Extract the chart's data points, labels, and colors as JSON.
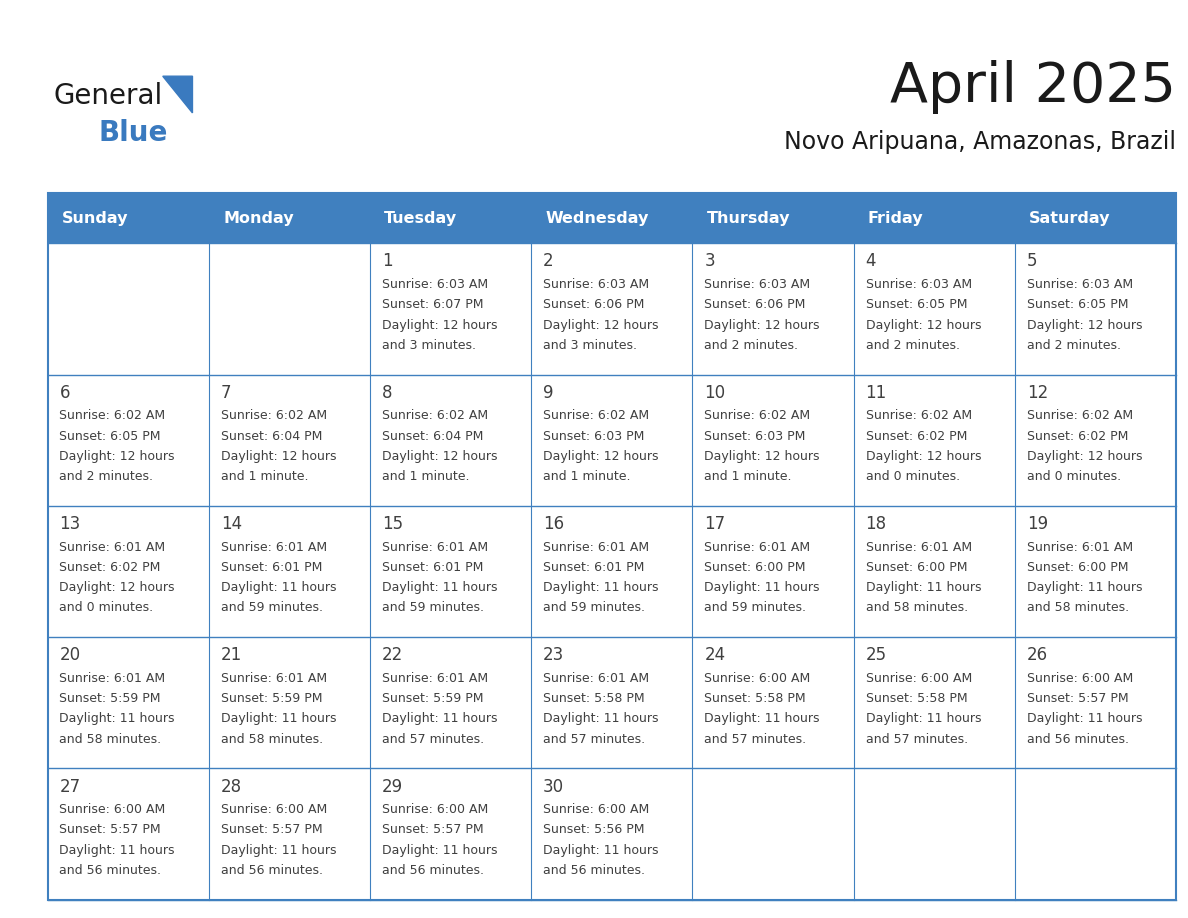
{
  "title": "April 2025",
  "subtitle": "Novo Aripuana, Amazonas, Brazil",
  "days_of_week": [
    "Sunday",
    "Monday",
    "Tuesday",
    "Wednesday",
    "Thursday",
    "Friday",
    "Saturday"
  ],
  "header_bg": "#4080bf",
  "header_text_color": "#ffffff",
  "border_color": "#4080bf",
  "text_color": "#404040",
  "title_color": "#1a1a1a",
  "subtitle_color": "#1a1a1a",
  "general_text_color": "#1a1a1a",
  "blue_text_color": "#3a7abf",
  "calendar_data": [
    [
      {
        "day": "",
        "sunrise": "",
        "sunset": "",
        "daylight": ""
      },
      {
        "day": "",
        "sunrise": "",
        "sunset": "",
        "daylight": ""
      },
      {
        "day": "1",
        "sunrise": "6:03 AM",
        "sunset": "6:07 PM",
        "daylight": "12 hours\nand 3 minutes."
      },
      {
        "day": "2",
        "sunrise": "6:03 AM",
        "sunset": "6:06 PM",
        "daylight": "12 hours\nand 3 minutes."
      },
      {
        "day": "3",
        "sunrise": "6:03 AM",
        "sunset": "6:06 PM",
        "daylight": "12 hours\nand 2 minutes."
      },
      {
        "day": "4",
        "sunrise": "6:03 AM",
        "sunset": "6:05 PM",
        "daylight": "12 hours\nand 2 minutes."
      },
      {
        "day": "5",
        "sunrise": "6:03 AM",
        "sunset": "6:05 PM",
        "daylight": "12 hours\nand 2 minutes."
      }
    ],
    [
      {
        "day": "6",
        "sunrise": "6:02 AM",
        "sunset": "6:05 PM",
        "daylight": "12 hours\nand 2 minutes."
      },
      {
        "day": "7",
        "sunrise": "6:02 AM",
        "sunset": "6:04 PM",
        "daylight": "12 hours\nand 1 minute."
      },
      {
        "day": "8",
        "sunrise": "6:02 AM",
        "sunset": "6:04 PM",
        "daylight": "12 hours\nand 1 minute."
      },
      {
        "day": "9",
        "sunrise": "6:02 AM",
        "sunset": "6:03 PM",
        "daylight": "12 hours\nand 1 minute."
      },
      {
        "day": "10",
        "sunrise": "6:02 AM",
        "sunset": "6:03 PM",
        "daylight": "12 hours\nand 1 minute."
      },
      {
        "day": "11",
        "sunrise": "6:02 AM",
        "sunset": "6:02 PM",
        "daylight": "12 hours\nand 0 minutes."
      },
      {
        "day": "12",
        "sunrise": "6:02 AM",
        "sunset": "6:02 PM",
        "daylight": "12 hours\nand 0 minutes."
      }
    ],
    [
      {
        "day": "13",
        "sunrise": "6:01 AM",
        "sunset": "6:02 PM",
        "daylight": "12 hours\nand 0 minutes."
      },
      {
        "day": "14",
        "sunrise": "6:01 AM",
        "sunset": "6:01 PM",
        "daylight": "11 hours\nand 59 minutes."
      },
      {
        "day": "15",
        "sunrise": "6:01 AM",
        "sunset": "6:01 PM",
        "daylight": "11 hours\nand 59 minutes."
      },
      {
        "day": "16",
        "sunrise": "6:01 AM",
        "sunset": "6:01 PM",
        "daylight": "11 hours\nand 59 minutes."
      },
      {
        "day": "17",
        "sunrise": "6:01 AM",
        "sunset": "6:00 PM",
        "daylight": "11 hours\nand 59 minutes."
      },
      {
        "day": "18",
        "sunrise": "6:01 AM",
        "sunset": "6:00 PM",
        "daylight": "11 hours\nand 58 minutes."
      },
      {
        "day": "19",
        "sunrise": "6:01 AM",
        "sunset": "6:00 PM",
        "daylight": "11 hours\nand 58 minutes."
      }
    ],
    [
      {
        "day": "20",
        "sunrise": "6:01 AM",
        "sunset": "5:59 PM",
        "daylight": "11 hours\nand 58 minutes."
      },
      {
        "day": "21",
        "sunrise": "6:01 AM",
        "sunset": "5:59 PM",
        "daylight": "11 hours\nand 58 minutes."
      },
      {
        "day": "22",
        "sunrise": "6:01 AM",
        "sunset": "5:59 PM",
        "daylight": "11 hours\nand 57 minutes."
      },
      {
        "day": "23",
        "sunrise": "6:01 AM",
        "sunset": "5:58 PM",
        "daylight": "11 hours\nand 57 minutes."
      },
      {
        "day": "24",
        "sunrise": "6:00 AM",
        "sunset": "5:58 PM",
        "daylight": "11 hours\nand 57 minutes."
      },
      {
        "day": "25",
        "sunrise": "6:00 AM",
        "sunset": "5:58 PM",
        "daylight": "11 hours\nand 57 minutes."
      },
      {
        "day": "26",
        "sunrise": "6:00 AM",
        "sunset": "5:57 PM",
        "daylight": "11 hours\nand 56 minutes."
      }
    ],
    [
      {
        "day": "27",
        "sunrise": "6:00 AM",
        "sunset": "5:57 PM",
        "daylight": "11 hours\nand 56 minutes."
      },
      {
        "day": "28",
        "sunrise": "6:00 AM",
        "sunset": "5:57 PM",
        "daylight": "11 hours\nand 56 minutes."
      },
      {
        "day": "29",
        "sunrise": "6:00 AM",
        "sunset": "5:57 PM",
        "daylight": "11 hours\nand 56 minutes."
      },
      {
        "day": "30",
        "sunrise": "6:00 AM",
        "sunset": "5:56 PM",
        "daylight": "11 hours\nand 56 minutes."
      },
      {
        "day": "",
        "sunrise": "",
        "sunset": "",
        "daylight": ""
      },
      {
        "day": "",
        "sunrise": "",
        "sunset": "",
        "daylight": ""
      },
      {
        "day": "",
        "sunrise": "",
        "sunset": "",
        "daylight": ""
      }
    ]
  ]
}
